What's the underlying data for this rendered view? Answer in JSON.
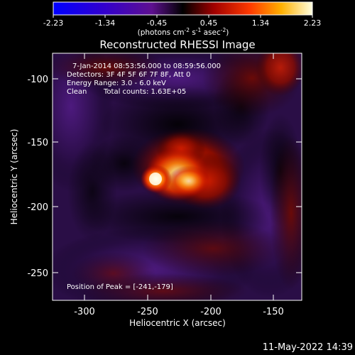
{
  "colorbar": {
    "scale_min": -2.23,
    "scale_max": 2.23,
    "tick_labels": [
      "-2.23",
      "-1.34",
      "-0.45",
      "0.45",
      "1.34",
      "2.23"
    ],
    "units_base": "(photons cm",
    "units_exp1": "-2",
    "units_mid": " s",
    "units_exp2": "-1",
    "units_end": " asec",
    "units_exp3": "-2",
    "units_close": ")"
  },
  "image": {
    "title": "Reconstructed RHESSI Image",
    "time_line": "7-Jan-2014 08:53:56.000 to 08:59:56.000",
    "detectors_line": "Detectors: 3F 4F 5F 6F 7F 8F, Att 0",
    "energy_line": "Energy Range: 3.0 - 6.0 keV",
    "method": "Clean",
    "counts_line": "Total counts: 1.63E+05",
    "peak_line": "Position of Peak = [-241,-179]",
    "peak_position": [
      -241,
      -179
    ]
  },
  "axes": {
    "xlabel": "Heliocentric X (arcsec)",
    "ylabel": "Heliocentric Y (arcsec)",
    "x_ticks": [
      "-300",
      "-250",
      "-200",
      "-150"
    ],
    "y_ticks": [
      "-100",
      "-150",
      "-200",
      "-250"
    ],
    "x_range": [
      -325,
      -127
    ],
    "y_range": [
      -273,
      -75
    ]
  },
  "footer": {
    "timestamp": "11-May-2022 14:39"
  }
}
